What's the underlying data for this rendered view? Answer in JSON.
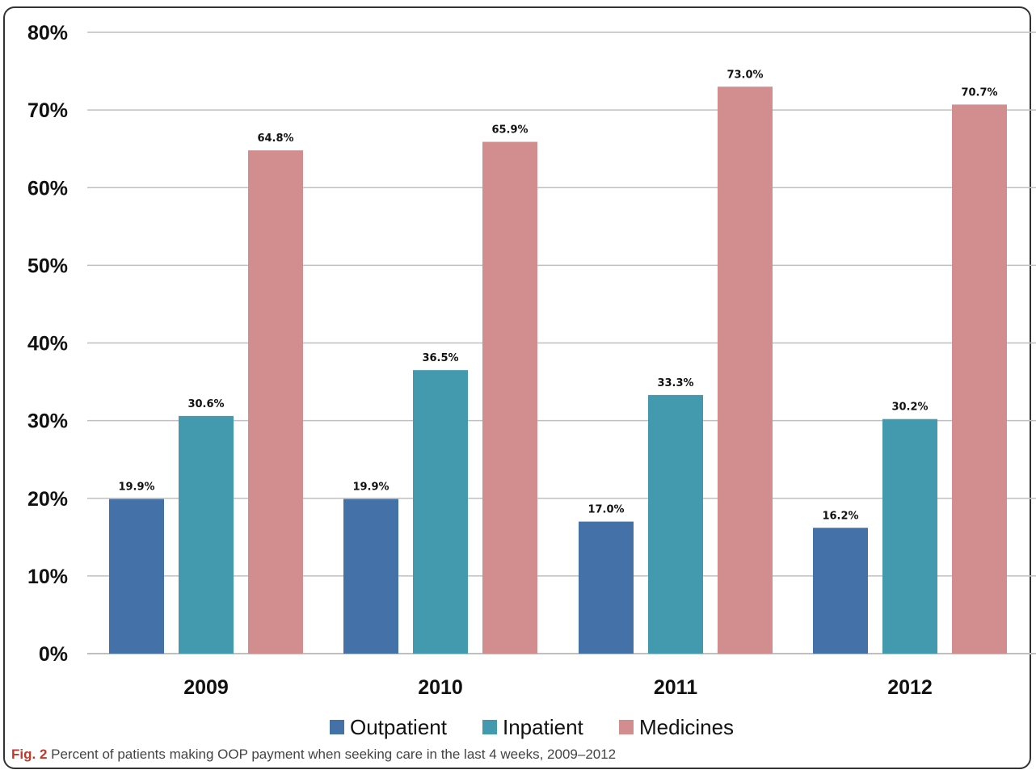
{
  "chart_data": {
    "type": "bar",
    "categories": [
      "2009",
      "2010",
      "2011",
      "2012"
    ],
    "series": [
      {
        "name": "Outpatient",
        "values": [
          19.9,
          19.9,
          17.0,
          16.2
        ],
        "labels": [
          "19.9%",
          "19.9%",
          "17.0%",
          "16.2%"
        ],
        "color": "#4472A8"
      },
      {
        "name": "Inpatient",
        "values": [
          30.6,
          36.5,
          33.3,
          30.2
        ],
        "labels": [
          "30.6%",
          "36.5%",
          "33.3%",
          "30.2%"
        ],
        "color": "#4399AD"
      },
      {
        "name": "Medicines",
        "values": [
          64.8,
          65.9,
          73.0,
          70.7
        ],
        "labels": [
          "64.8%",
          "65.9%",
          "73.0%",
          "70.7%"
        ],
        "color": "#D28E8E"
      }
    ],
    "y_ticks": [
      "0%",
      "10%",
      "20%",
      "30%",
      "40%",
      "50%",
      "60%",
      "70%",
      "80%"
    ],
    "ylim": [
      0,
      80
    ],
    "grid": true,
    "legend_position": "bottom",
    "gridline_color": "#bfbfbf"
  },
  "caption": {
    "label": "Fig. 2",
    "text": "Percent of patients making OOP payment when seeking care in the last 4 weeks, 2009–2012"
  }
}
